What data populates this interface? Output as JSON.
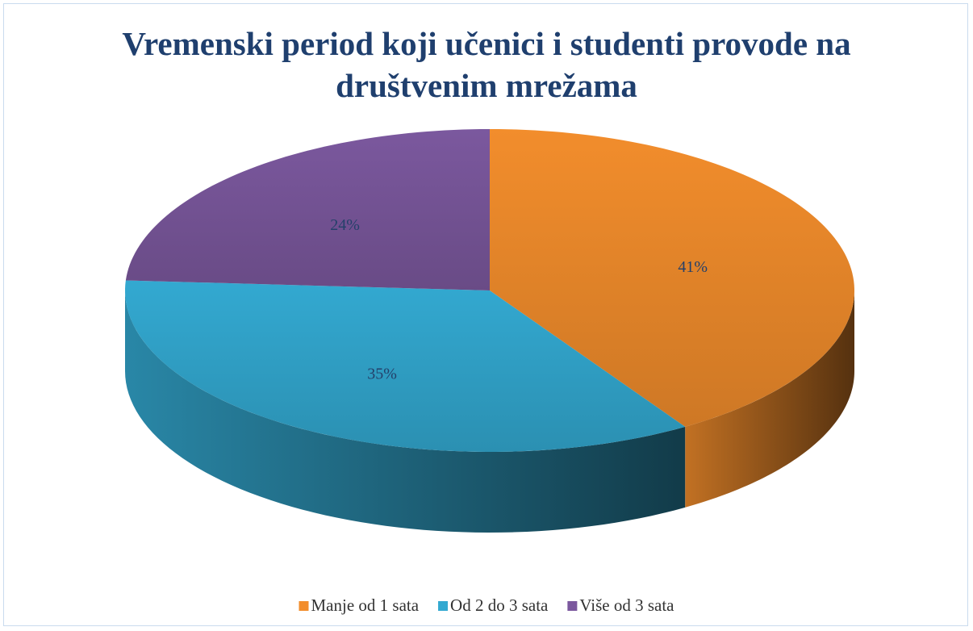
{
  "chart_data": {
    "type": "pie",
    "title": "Vremenski period koji učenici i studenti provode na društvenim mrežama",
    "categories": [
      "Manje od 1 sata",
      "Od 2 do 3 sata",
      "Više od 3 sata"
    ],
    "values": [
      41,
      35,
      24
    ],
    "value_labels": [
      "41%",
      "35%",
      "24%"
    ],
    "colors": [
      "#f28d2c",
      "#33a9d1",
      "#7b589e"
    ],
    "legend": "bottom"
  }
}
